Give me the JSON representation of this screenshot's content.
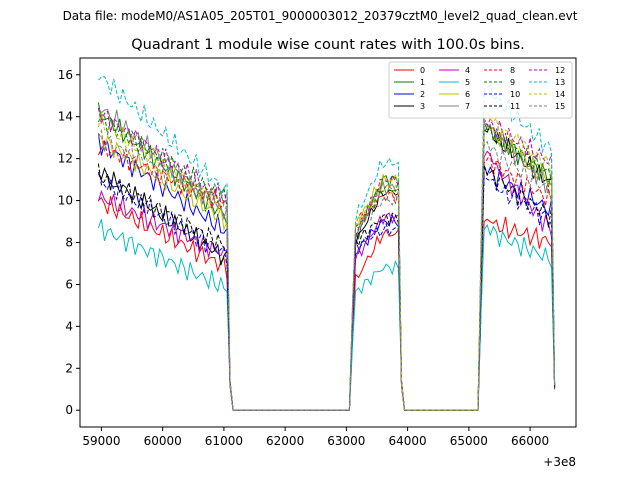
{
  "chart_data": {
    "type": "line",
    "suptitle": "Data file: modeM0/AS1A05_205T01_9000003012_20379cztM0_level2_quad_clean.evt",
    "title": "Quadrant 1 module wise count rates with 100.0s bins.",
    "xlabel": "",
    "ylabel": "",
    "x_offset_label": "+3e8",
    "xlim": [
      58650,
      66750
    ],
    "ylim": [
      -0.8,
      16.8
    ],
    "x_ticks": [
      59000,
      60000,
      61000,
      62000,
      63000,
      64000,
      65000,
      66000
    ],
    "x_tick_labels": [
      "59000",
      "60000",
      "61000",
      "62000",
      "63000",
      "64000",
      "65000",
      "66000"
    ],
    "y_ticks": [
      0,
      2,
      4,
      6,
      8,
      10,
      12,
      14,
      16
    ],
    "y_tick_labels": [
      "0",
      "2",
      "4",
      "6",
      "8",
      "10",
      "12",
      "14",
      "16"
    ],
    "legend_position": "top-right",
    "segments": [
      {
        "start": 58950,
        "end": 61050
      },
      {
        "start": 63150,
        "end": 63850
      },
      {
        "start": 65250,
        "end": 66350
      }
    ],
    "series": [
      {
        "name": "0",
        "color": "#ff0000",
        "dash": "solid",
        "seg": [
          [
            10.0,
            6.8
          ],
          [
            6.2,
            8.4
          ],
          [
            9.0,
            8.0
          ]
        ],
        "end": 1.0
      },
      {
        "name": "1",
        "color": "#008000",
        "dash": "solid",
        "seg": [
          [
            14.2,
            9.2
          ],
          [
            8.2,
            11.0
          ],
          [
            13.5,
            11.0
          ]
        ],
        "end": 1.1
      },
      {
        "name": "2",
        "color": "#0000ff",
        "dash": "solid",
        "seg": [
          [
            12.8,
            8.5
          ],
          [
            7.5,
            9.0
          ],
          [
            11.5,
            9.5
          ]
        ],
        "end": 1.1
      },
      {
        "name": "3",
        "color": "#000000",
        "dash": "solid",
        "seg": [
          [
            11.4,
            7.2
          ],
          [
            8.0,
            10.4
          ],
          [
            13.4,
            10.8
          ]
        ],
        "end": 1.1
      },
      {
        "name": "4",
        "color": "#bf00bf",
        "dash": "solid",
        "seg": [
          [
            10.2,
            7.4
          ],
          [
            7.2,
            9.2
          ],
          [
            12.2,
            8.6
          ]
        ],
        "end": 1.2
      },
      {
        "name": "5",
        "color": "#00bfbf",
        "dash": "solid",
        "seg": [
          [
            8.7,
            5.8
          ],
          [
            5.6,
            6.8
          ],
          [
            8.6,
            7.2
          ]
        ],
        "end": 1.2
      },
      {
        "name": "6",
        "color": "#bfbf00",
        "dash": "solid",
        "seg": [
          [
            13.0,
            9.0
          ],
          [
            8.8,
            11.0
          ],
          [
            13.6,
            10.8
          ]
        ],
        "end": 1.2
      },
      {
        "name": "7",
        "color": "#808080",
        "dash": "solid",
        "seg": [
          [
            14.5,
            9.4
          ],
          [
            8.4,
            10.6
          ],
          [
            13.6,
            10.6
          ]
        ],
        "end": 1.1
      },
      {
        "name": "8",
        "color": "#ff0000",
        "dash": "dashed",
        "seg": [
          [
            12.6,
            9.8
          ],
          [
            9.0,
            10.2
          ],
          [
            12.0,
            10.0
          ]
        ],
        "end": 1.2
      },
      {
        "name": "9",
        "color": "#008000",
        "dash": "dashed",
        "seg": [
          [
            14.0,
            10.0
          ],
          [
            8.6,
            10.6
          ],
          [
            13.4,
            11.2
          ]
        ],
        "end": 1.2
      },
      {
        "name": "10",
        "color": "#0000ff",
        "dash": "dashed",
        "seg": [
          [
            11.0,
            7.4
          ],
          [
            7.8,
            8.6
          ],
          [
            11.0,
            9.0
          ]
        ],
        "end": 1.1
      },
      {
        "name": "11",
        "color": "#000000",
        "dash": "dashed",
        "seg": [
          [
            11.2,
            7.8
          ],
          [
            8.0,
            9.2
          ],
          [
            11.4,
            9.2
          ]
        ],
        "end": 1.1
      },
      {
        "name": "12",
        "color": "#bf00bf",
        "dash": "dashed",
        "seg": [
          [
            14.2,
            10.0
          ],
          [
            8.4,
            11.0
          ],
          [
            13.8,
            11.8
          ]
        ],
        "end": 1.3
      },
      {
        "name": "13",
        "color": "#00bfbf",
        "dash": "dashed",
        "seg": [
          [
            16.0,
            10.4
          ],
          [
            9.2,
            11.8
          ],
          [
            15.4,
            12.4
          ]
        ],
        "end": 1.3
      },
      {
        "name": "14",
        "color": "#bfbf00",
        "dash": "dashed",
        "seg": [
          [
            13.8,
            9.6
          ],
          [
            8.8,
            10.6
          ],
          [
            14.0,
            11.6
          ]
        ],
        "end": 1.2
      },
      {
        "name": "15",
        "color": "#808080",
        "dash": "dashed",
        "seg": [
          [
            13.0,
            9.8
          ],
          [
            8.6,
            10.0
          ],
          [
            12.6,
            10.4
          ]
        ],
        "end": 1.2
      }
    ]
  }
}
